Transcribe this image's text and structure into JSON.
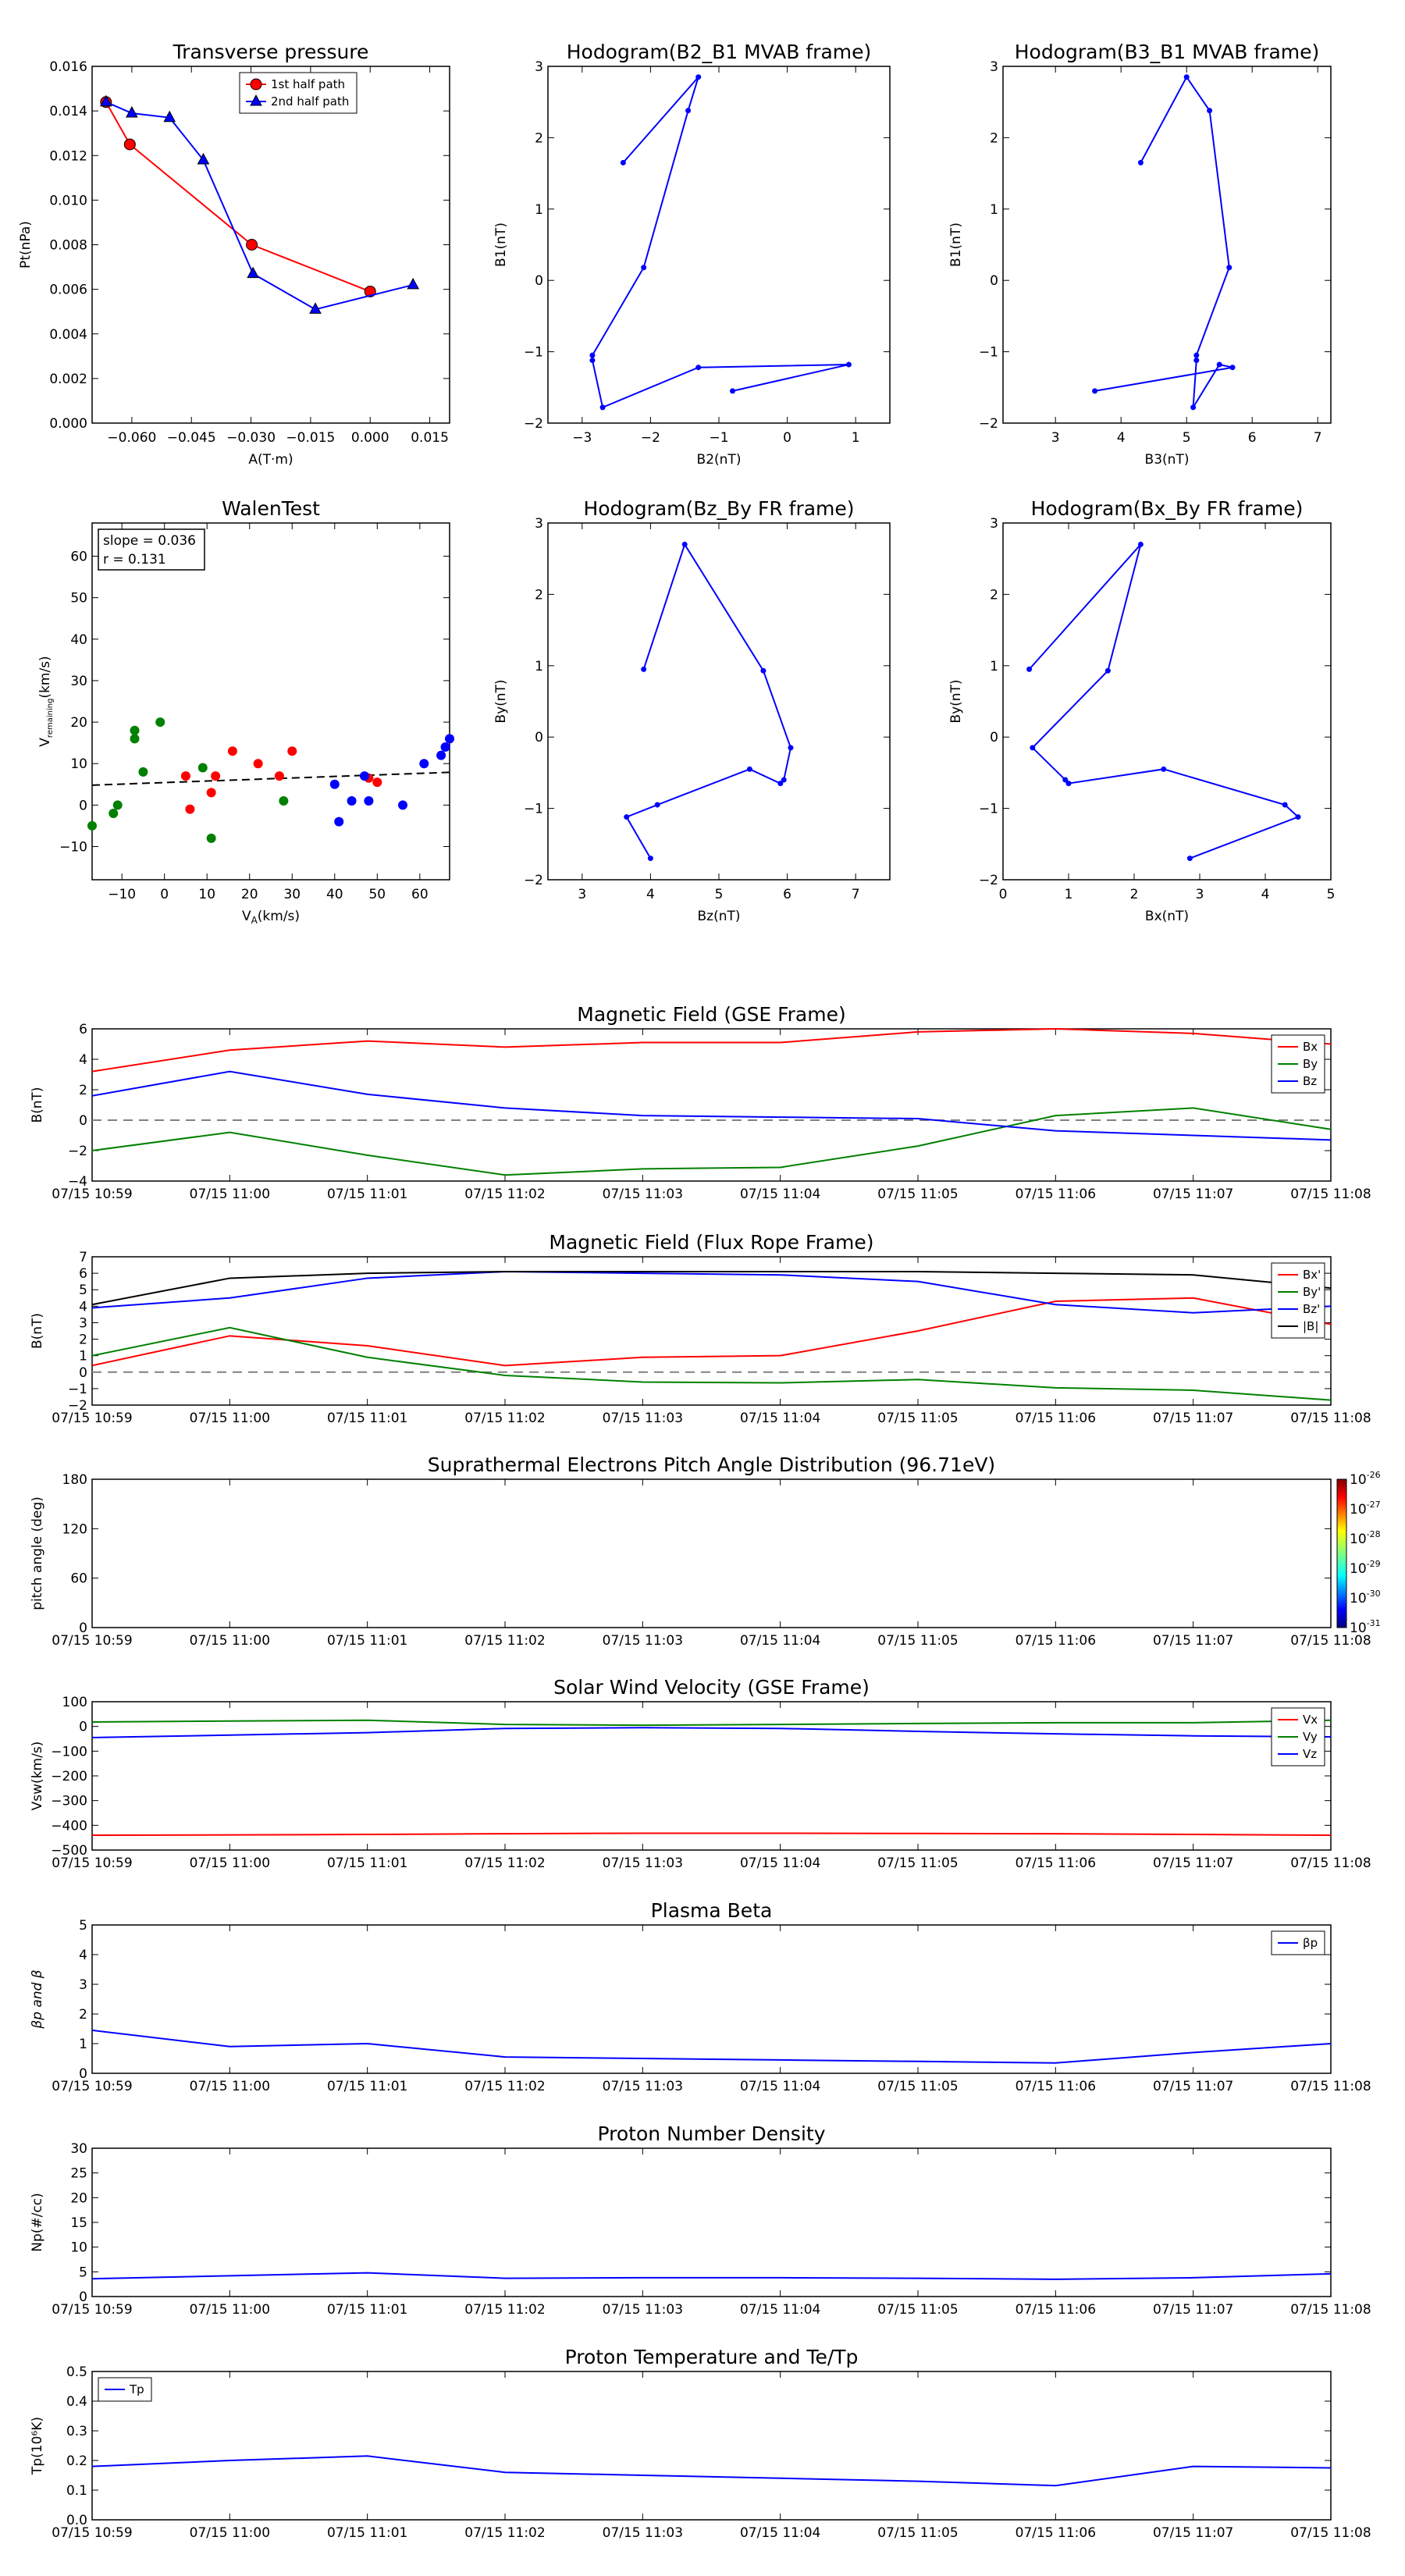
{
  "figure": {
    "background": "#ffffff"
  },
  "colors": {
    "red": "#ff0000",
    "green": "#008000",
    "blue": "#0000ff",
    "black": "#000000",
    "gray": "#808080"
  },
  "time_ticks": [
    "07/15 10:59",
    "07/15 11:00",
    "07/15 11:01",
    "07/15 11:02",
    "07/15 11:03",
    "07/15 11:04",
    "07/15 11:05",
    "07/15 11:06",
    "07/15 11:07",
    "07/15 11:08"
  ],
  "chart_data": [
    {
      "id": "transverse_pressure",
      "type": "line",
      "title": "Transverse pressure",
      "xlabel": "A(T·m)",
      "ylabel": "Pt(nPa)",
      "xlim": [
        -0.07,
        0.02
      ],
      "ylim": [
        0,
        0.016
      ],
      "xticks": [
        -0.06,
        -0.045,
        -0.03,
        -0.015,
        0.0,
        0.015
      ],
      "xtick_labels": [
        "−0.060",
        "−0.045",
        "−0.030",
        "−0.015",
        "0.000",
        "0.015"
      ],
      "yticks": [
        0,
        0.002,
        0.004,
        0.006,
        0.008,
        0.01,
        0.012,
        0.014,
        0.016
      ],
      "ytick_labels": [
        "0.000",
        "0.002",
        "0.004",
        "0.006",
        "0.008",
        "0.010",
        "0.012",
        "0.014",
        "0.016"
      ],
      "legend": "top-center",
      "series": [
        {
          "name": "1st half path",
          "color": "#ff0000",
          "marker": "circle",
          "x": [
            -0.0665,
            -0.0605,
            -0.0298,
            0.0
          ],
          "y": [
            0.0144,
            0.0125,
            0.008,
            0.0059
          ]
        },
        {
          "name": "2nd half path",
          "color": "#0000ff",
          "marker": "triangle",
          "x": [
            -0.0665,
            -0.06,
            -0.0505,
            -0.042,
            -0.0295,
            -0.0138,
            0.0108
          ],
          "y": [
            0.0144,
            0.0139,
            0.0137,
            0.0118,
            0.0067,
            0.0051,
            0.0062
          ]
        }
      ]
    },
    {
      "id": "hodogram_b2_b1",
      "type": "line",
      "title": "Hodogram(B2_B1 MVAB frame)",
      "xlabel": "B2(nT)",
      "ylabel": "B1(nT)",
      "xlim": [
        -3.5,
        1.5
      ],
      "ylim": [
        -2,
        3
      ],
      "xticks": [
        -3,
        -2,
        -1,
        0,
        1
      ],
      "xtick_labels": [
        "−3",
        "−2",
        "−1",
        "0",
        "1"
      ],
      "yticks": [
        -2,
        -1,
        0,
        1,
        2,
        3
      ],
      "ytick_labels": [
        "−2",
        "−1",
        "0",
        "1",
        "2",
        "3"
      ],
      "series": [
        {
          "color": "#0000ff",
          "marker": "dot",
          "x": [
            -2.4,
            -1.3,
            -1.45,
            -2.1,
            -2.85,
            -2.85,
            -2.7,
            -1.3,
            0.9,
            -0.8
          ],
          "y": [
            1.65,
            2.85,
            2.38,
            0.18,
            -1.05,
            -1.12,
            -1.78,
            -1.22,
            -1.18,
            -1.55
          ]
        }
      ]
    },
    {
      "id": "hodogram_b3_b1",
      "type": "line",
      "title": "Hodogram(B3_B1 MVAB frame)",
      "xlabel": "B3(nT)",
      "ylabel": "B1(nT)",
      "xlim": [
        2.2,
        7.2
      ],
      "ylim": [
        -2,
        3
      ],
      "xticks": [
        3,
        4,
        5,
        6,
        7
      ],
      "xtick_labels": [
        "3",
        "4",
        "5",
        "6",
        "7"
      ],
      "yticks": [
        -2,
        -1,
        0,
        1,
        2,
        3
      ],
      "ytick_labels": [
        "−2",
        "−1",
        "0",
        "1",
        "2",
        "3"
      ],
      "series": [
        {
          "color": "#0000ff",
          "marker": "dot",
          "x": [
            4.3,
            5.0,
            5.35,
            5.65,
            5.15,
            5.15,
            5.1,
            5.5,
            5.7,
            3.6
          ],
          "y": [
            1.65,
            2.85,
            2.38,
            0.18,
            -1.05,
            -1.12,
            -1.78,
            -1.18,
            -1.22,
            -1.55
          ]
        }
      ]
    },
    {
      "id": "walen_test",
      "type": "scatter",
      "title": "WalenTest",
      "xlabel": "V_A(km/s)",
      "ylabel": "V_remaining(km/s)",
      "xlim": [
        -17,
        67
      ],
      "ylim": [
        -18,
        68
      ],
      "xticks": [
        -10,
        0,
        10,
        20,
        30,
        40,
        50,
        60
      ],
      "xtick_labels": [
        "−10",
        "0",
        "10",
        "20",
        "30",
        "40",
        "50",
        "60"
      ],
      "yticks": [
        -10,
        0,
        10,
        20,
        30,
        40,
        50,
        60
      ],
      "ytick_labels": [
        "−10",
        "0",
        "10",
        "20",
        "30",
        "40",
        "50",
        "60"
      ],
      "annotation": [
        "slope = 0.036",
        "r = 0.131"
      ],
      "fit_line": {
        "x": [
          -17,
          67
        ],
        "y": [
          4.8,
          7.9
        ]
      },
      "series": [
        {
          "color": "#008000",
          "x": [
            -17,
            -12,
            -11,
            -7,
            -7,
            -5,
            -1,
            9,
            11,
            28
          ],
          "y": [
            -5,
            -2,
            0,
            16,
            18,
            8,
            20,
            9,
            -8,
            1
          ]
        },
        {
          "color": "#ff0000",
          "x": [
            5,
            6,
            11,
            12,
            16,
            22,
            27,
            30,
            48,
            50
          ],
          "y": [
            7,
            -1,
            3,
            7,
            13,
            10,
            7,
            13,
            6.5,
            5.5
          ]
        },
        {
          "color": "#0000ff",
          "x": [
            40,
            41,
            44,
            47,
            48,
            56,
            61,
            65,
            66,
            67
          ],
          "y": [
            5,
            -4,
            1,
            7,
            1,
            0,
            10,
            12,
            14,
            16
          ]
        }
      ]
    },
    {
      "id": "hodogram_bz_by",
      "type": "line",
      "title": "Hodogram(Bz_By FR frame)",
      "xlabel": "Bz(nT)",
      "ylabel": "By(nT)",
      "xlim": [
        2.5,
        7.5
      ],
      "ylim": [
        -2,
        3
      ],
      "xticks": [
        3,
        4,
        5,
        6,
        7
      ],
      "xtick_labels": [
        "3",
        "4",
        "5",
        "6",
        "7"
      ],
      "yticks": [
        -2,
        -1,
        0,
        1,
        2,
        3
      ],
      "ytick_labels": [
        "−2",
        "−1",
        "0",
        "1",
        "2",
        "3"
      ],
      "series": [
        {
          "color": "#0000ff",
          "marker": "dot",
          "x": [
            3.9,
            4.5,
            5.65,
            6.05,
            5.95,
            5.9,
            5.45,
            4.1,
            3.65,
            4.0
          ],
          "y": [
            0.95,
            2.7,
            0.93,
            -0.15,
            -0.6,
            -0.65,
            -0.45,
            -0.95,
            -1.12,
            -1.7
          ]
        }
      ]
    },
    {
      "id": "hodogram_bx_by",
      "type": "line",
      "title": "Hodogram(Bx_By FR frame)",
      "xlabel": "Bx(nT)",
      "ylabel": "By(nT)",
      "xlim": [
        0,
        5
      ],
      "ylim": [
        -2,
        3
      ],
      "xticks": [
        0,
        1,
        2,
        3,
        4,
        5
      ],
      "xtick_labels": [
        "0",
        "1",
        "2",
        "3",
        "4",
        "5"
      ],
      "yticks": [
        -2,
        -1,
        0,
        1,
        2,
        3
      ],
      "ytick_labels": [
        "−2",
        "−1",
        "0",
        "1",
        "2",
        "3"
      ],
      "series": [
        {
          "color": "#0000ff",
          "marker": "dot",
          "x": [
            0.4,
            2.1,
            1.6,
            0.45,
            0.95,
            1.0,
            2.45,
            4.3,
            4.5,
            2.85
          ],
          "y": [
            0.95,
            2.7,
            0.93,
            -0.15,
            -0.6,
            -0.65,
            -0.45,
            -0.95,
            -1.12,
            -1.7
          ]
        }
      ]
    },
    {
      "id": "magnetic_field_gse",
      "type": "line",
      "title": "Magnetic Field (GSE Frame)",
      "ylabel": "B(nT)",
      "ylim": [
        -4,
        6
      ],
      "yticks": [
        -4,
        -2,
        0,
        2,
        4,
        6
      ],
      "ytick_labels": [
        "−4",
        "−2",
        "0",
        "2",
        "4",
        "6"
      ],
      "x": [
        0,
        1,
        2,
        3,
        4,
        5,
        6,
        7,
        8,
        9
      ],
      "hline": 0,
      "legend": "top-right",
      "series": [
        {
          "name": "Bx",
          "color": "#ff0000",
          "values": [
            3.2,
            4.6,
            5.2,
            4.8,
            5.1,
            5.1,
            5.8,
            6.0,
            5.7,
            5.0
          ]
        },
        {
          "name": "By",
          "color": "#008000",
          "values": [
            -2.0,
            -0.8,
            -2.3,
            -3.6,
            -3.2,
            -3.1,
            -1.7,
            0.3,
            0.8,
            -0.6
          ]
        },
        {
          "name": "Bz",
          "color": "#0000ff",
          "values": [
            1.6,
            3.2,
            1.7,
            0.8,
            0.3,
            0.2,
            0.1,
            -0.7,
            -1.0,
            -1.3
          ]
        }
      ]
    },
    {
      "id": "magnetic_field_fr",
      "type": "line",
      "title": "Magnetic Field (Flux Rope Frame)",
      "ylabel": "B(nT)",
      "ylim": [
        -2,
        7
      ],
      "yticks": [
        -2,
        -1,
        0,
        1,
        2,
        3,
        4,
        5,
        6,
        7
      ],
      "ytick_labels": [
        "−2",
        "−1",
        "0",
        "1",
        "2",
        "3",
        "4",
        "5",
        "6",
        "7"
      ],
      "x": [
        0,
        1,
        2,
        3,
        4,
        5,
        6,
        7,
        8,
        9
      ],
      "hline": 0,
      "legend": "top-right",
      "series": [
        {
          "name": "Bx'",
          "color": "#ff0000",
          "values": [
            0.4,
            2.2,
            1.6,
            0.4,
            0.9,
            1.0,
            2.5,
            4.3,
            4.5,
            2.9
          ]
        },
        {
          "name": "By'",
          "color": "#008000",
          "values": [
            1.0,
            2.7,
            0.9,
            -0.2,
            -0.6,
            -0.65,
            -0.45,
            -0.95,
            -1.1,
            -1.7
          ]
        },
        {
          "name": "Bz'",
          "color": "#0000ff",
          "values": [
            3.9,
            4.5,
            5.7,
            6.1,
            6.0,
            5.9,
            5.5,
            4.1,
            3.6,
            4.0
          ]
        },
        {
          "name": "|B|",
          "color": "#000000",
          "values": [
            4.1,
            5.7,
            6.0,
            6.1,
            6.1,
            6.1,
            6.1,
            6.0,
            5.9,
            5.1
          ]
        }
      ]
    },
    {
      "id": "pitch_angle",
      "type": "heatmap",
      "title": "Suprathermal Electrons Pitch Angle Distribution (96.71eV)",
      "ylabel": "pitch angle (deg)",
      "ylim": [
        0,
        180
      ],
      "yticks": [
        0,
        60,
        120,
        180
      ],
      "ytick_labels": [
        "0",
        "60",
        "120",
        "180"
      ],
      "colorbar": {
        "scale": "log",
        "min_exp": -31,
        "max_exp": -26,
        "ticks": [
          "10",
          "10",
          "10",
          "10",
          "10",
          "10"
        ],
        "tick_exps": [
          "-31",
          "-30",
          "-29",
          "-28",
          "-27",
          "-26"
        ]
      },
      "values": []
    },
    {
      "id": "solar_wind_velocity",
      "type": "line",
      "title": "Solar Wind Velocity (GSE Frame)",
      "ylabel": "Vsw(km/s)",
      "ylim": [
        -500,
        100
      ],
      "yticks": [
        -500,
        -400,
        -300,
        -200,
        -100,
        0,
        100
      ],
      "ytick_labels": [
        "−500",
        "−400",
        "−300",
        "−200",
        "−100",
        "0",
        "100"
      ],
      "x": [
        0,
        1,
        2,
        3,
        4,
        5,
        6,
        7,
        8,
        9
      ],
      "legend": "top-right",
      "series": [
        {
          "name": "Vx",
          "color": "#ff0000",
          "values": [
            -440,
            -439,
            -437,
            -434,
            -432,
            -432,
            -433,
            -434,
            -437,
            -440
          ]
        },
        {
          "name": "Vy",
          "color": "#008000",
          "values": [
            18,
            22,
            25,
            8,
            5,
            8,
            12,
            15,
            15,
            25
          ]
        },
        {
          "name": "Vz",
          "color": "#0000ff",
          "values": [
            -45,
            -35,
            -25,
            -8,
            -5,
            -8,
            -20,
            -30,
            -38,
            -42
          ]
        }
      ]
    },
    {
      "id": "plasma_beta",
      "type": "line",
      "title": "Plasma Beta",
      "ylabel": "βp and β",
      "ylim": [
        0,
        5
      ],
      "yticks": [
        0,
        1,
        2,
        3,
        4,
        5
      ],
      "ytick_labels": [
        "0",
        "1",
        "2",
        "3",
        "4",
        "5"
      ],
      "x": [
        0,
        1,
        2,
        3,
        4,
        5,
        6,
        7,
        8,
        9
      ],
      "legend": "top-right",
      "series": [
        {
          "name": "βp",
          "color": "#0000ff",
          "values": [
            1.45,
            0.9,
            1.0,
            0.55,
            0.5,
            0.45,
            0.4,
            0.35,
            0.7,
            1.0
          ]
        }
      ]
    },
    {
      "id": "proton_density",
      "type": "line",
      "title": "Proton Number Density",
      "ylabel": "Np(#/cc)",
      "ylim": [
        0,
        30
      ],
      "yticks": [
        0,
        5,
        10,
        15,
        20,
        25,
        30
      ],
      "ytick_labels": [
        "0",
        "5",
        "10",
        "15",
        "20",
        "25",
        "30"
      ],
      "x": [
        0,
        1,
        2,
        3,
        4,
        5,
        6,
        7,
        8,
        9
      ],
      "series": [
        {
          "color": "#0000ff",
          "values": [
            3.6,
            4.2,
            4.8,
            3.7,
            3.8,
            3.8,
            3.7,
            3.5,
            3.8,
            4.6
          ]
        }
      ]
    },
    {
      "id": "proton_temperature",
      "type": "line",
      "title": "Proton Temperature and Te/Tp",
      "ylabel": "Tp(10⁶K)",
      "ylim": [
        0,
        0.5
      ],
      "yticks": [
        0,
        0.1,
        0.2,
        0.3,
        0.4,
        0.5
      ],
      "ytick_labels": [
        "0.0",
        "0.1",
        "0.2",
        "0.3",
        "0.4",
        "0.5"
      ],
      "x": [
        0,
        1,
        2,
        3,
        4,
        5,
        6,
        7,
        8,
        9
      ],
      "legend": "top-left",
      "series": [
        {
          "name": "Tp",
          "color": "#0000ff",
          "values": [
            0.18,
            0.2,
            0.215,
            0.16,
            0.15,
            0.14,
            0.13,
            0.115,
            0.18,
            0.175
          ]
        }
      ]
    }
  ]
}
